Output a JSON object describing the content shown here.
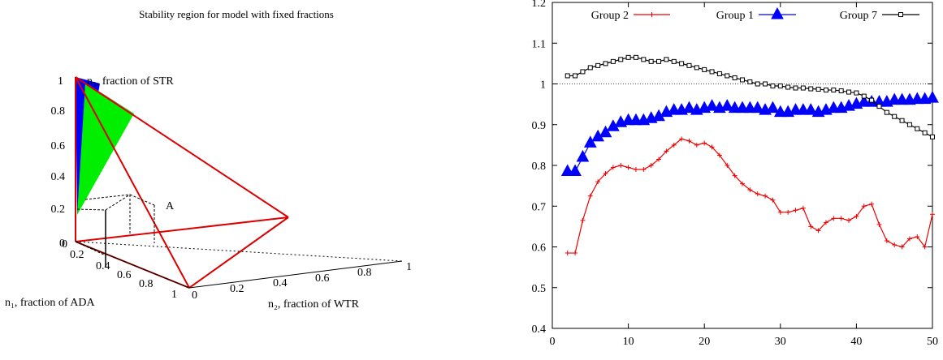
{
  "left_chart": {
    "title": "Stability region for model with fixed fractions",
    "n3_label": "n₃, fraction of STR",
    "n1_label": "n₁, fraction of ADA",
    "n2_label": "n₂, fraction of WTR",
    "point_label": "A",
    "n3_ticks": [
      "1",
      "0.8",
      "0.6",
      "0.4",
      "0.2",
      "0"
    ],
    "n1_ticks": [
      "0",
      "0.2",
      "0.4",
      "0.6",
      "0.8",
      "1"
    ],
    "n2_ticks": [
      "0",
      "0.2",
      "0.4",
      "0.6",
      "0.8",
      "1"
    ],
    "colors": {
      "frame": "#dd0000",
      "blue_region": "#0000ff",
      "green_region": "#00ee00",
      "magenta_region": "#ff00ff"
    }
  },
  "chart_data": {
    "type": "line",
    "title": "",
    "xlabel": "",
    "ylabel": "",
    "xlim": [
      0,
      50
    ],
    "ylim": [
      0.4,
      1.2
    ],
    "x_ticks": [
      "0",
      "10",
      "20",
      "30",
      "40",
      "50"
    ],
    "y_ticks": [
      "0.4",
      "0.5",
      "0.6",
      "0.7",
      "0.8",
      "0.9",
      "1",
      "1.1",
      "1.2"
    ],
    "reference_line": 1,
    "legend_position": "top",
    "x": [
      2,
      3,
      4,
      5,
      6,
      7,
      8,
      9,
      10,
      11,
      12,
      13,
      14,
      15,
      16,
      17,
      18,
      19,
      20,
      21,
      22,
      23,
      24,
      25,
      26,
      27,
      28,
      29,
      30,
      31,
      32,
      33,
      34,
      35,
      36,
      37,
      38,
      39,
      40,
      41,
      42,
      43,
      44,
      45,
      46,
      47,
      48,
      49,
      50
    ],
    "series": [
      {
        "name": "Group 2",
        "color": "#ee0000",
        "marker": "plus",
        "values": [
          0.585,
          0.585,
          0.665,
          0.725,
          0.76,
          0.78,
          0.795,
          0.8,
          0.795,
          0.79,
          0.79,
          0.8,
          0.815,
          0.835,
          0.85,
          0.865,
          0.86,
          0.85,
          0.855,
          0.845,
          0.825,
          0.8,
          0.775,
          0.755,
          0.74,
          0.73,
          0.725,
          0.715,
          0.685,
          0.685,
          0.69,
          0.695,
          0.65,
          0.64,
          0.66,
          0.67,
          0.67,
          0.665,
          0.675,
          0.7,
          0.705,
          0.655,
          0.615,
          0.605,
          0.6,
          0.62,
          0.625,
          0.6,
          0.68
        ]
      },
      {
        "name": "Group 1",
        "color": "#0000ff",
        "marker": "triangle",
        "values": [
          0.785,
          0.785,
          0.82,
          0.855,
          0.87,
          0.88,
          0.895,
          0.905,
          0.91,
          0.91,
          0.91,
          0.915,
          0.92,
          0.93,
          0.935,
          0.935,
          0.94,
          0.935,
          0.94,
          0.945,
          0.94,
          0.945,
          0.94,
          0.94,
          0.94,
          0.94,
          0.935,
          0.94,
          0.93,
          0.93,
          0.935,
          0.935,
          0.935,
          0.93,
          0.935,
          0.94,
          0.94,
          0.945,
          0.95,
          0.955,
          0.955,
          0.955,
          0.955,
          0.96,
          0.96,
          0.96,
          0.962,
          0.962,
          0.965
        ]
      },
      {
        "name": "Group 7",
        "color": "#000000",
        "marker": "square",
        "values": [
          1.02,
          1.02,
          1.03,
          1.04,
          1.045,
          1.05,
          1.055,
          1.06,
          1.065,
          1.065,
          1.06,
          1.055,
          1.055,
          1.06,
          1.055,
          1.05,
          1.045,
          1.04,
          1.035,
          1.03,
          1.025,
          1.02,
          1.015,
          1.01,
          1.005,
          1.0,
          1.0,
          0.995,
          0.995,
          0.992,
          0.99,
          0.99,
          0.988,
          0.987,
          0.985,
          0.985,
          0.983,
          0.98,
          0.978,
          0.97,
          0.96,
          0.945,
          0.93,
          0.92,
          0.91,
          0.9,
          0.89,
          0.88,
          0.87
        ]
      }
    ]
  }
}
